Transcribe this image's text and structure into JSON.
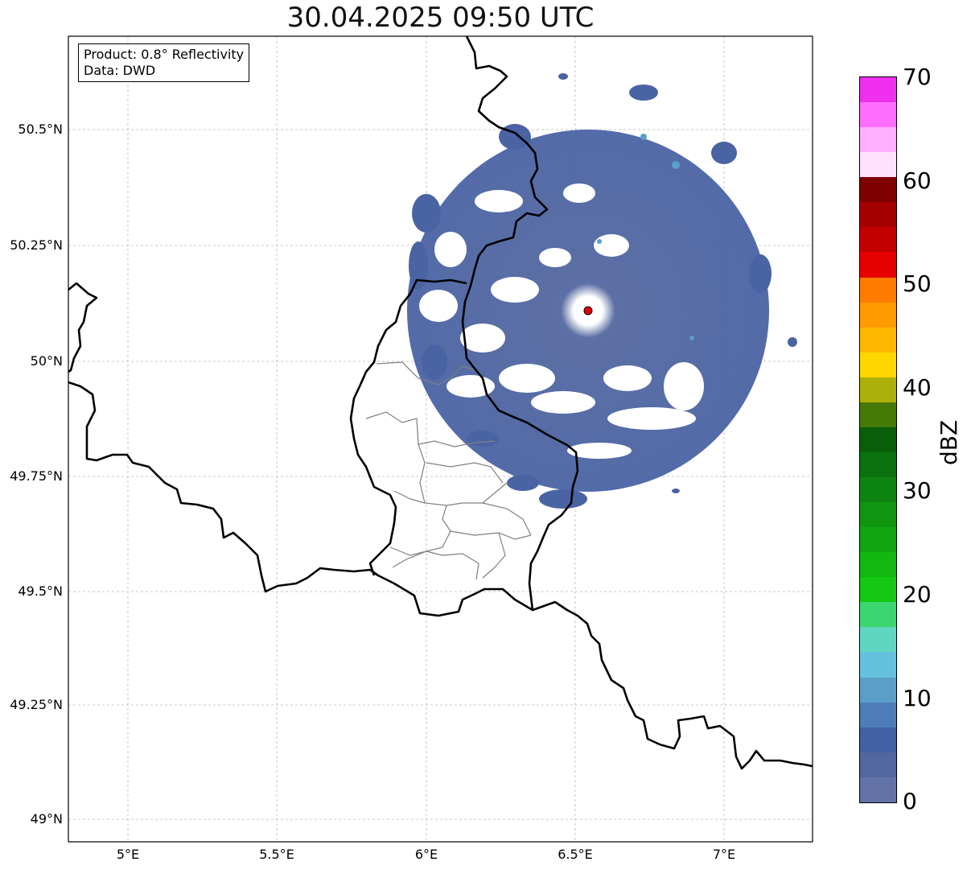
{
  "title": "30.04.2025 09:50 UTC",
  "product_box": {
    "product": "Product: 0.8° Reflectivity",
    "data_source": "Data: DWD"
  },
  "axes": {
    "lat_labels": [
      "50.5°N",
      "50.25°N",
      "50°N",
      "49.75°N",
      "49.5°N",
      "49.25°N",
      "49°N"
    ],
    "lon_labels": [
      "5°E",
      "5.5°E",
      "6°E",
      "6.5°E",
      "7°E"
    ]
  },
  "colorbar": {
    "unit": "dBZ",
    "tick_labels": [
      "70",
      "60",
      "50",
      "40",
      "30",
      "20",
      "10",
      "0"
    ],
    "colors": [
      "#6373a8",
      "#52679d",
      "#4260a3",
      "#4d7db6",
      "#5b9fc8",
      "#64c2df",
      "#5fd6c2",
      "#3cd670",
      "#14c814",
      "#10b810",
      "#11a611",
      "#109510",
      "#0e8410",
      "#0b7210",
      "#0a5e0a",
      "#457a08",
      "#adb00a",
      "#ffd700",
      "#ffb800",
      "#ff9a00",
      "#ff7c00",
      "#e60000",
      "#c20000",
      "#a50000",
      "#7f0000",
      "#ffe0ff",
      "#ffb0ff",
      "#ff6eff",
      "#ee30ee"
    ]
  },
  "radar_site": {
    "label": "radar-site",
    "color": "#e00000"
  }
}
